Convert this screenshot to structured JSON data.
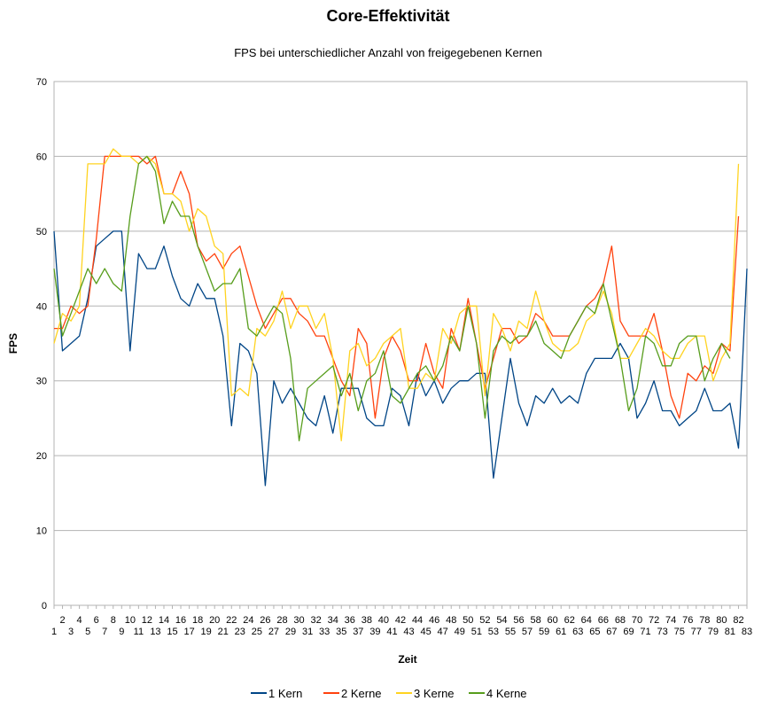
{
  "chart_data": {
    "type": "line",
    "title": "Core-Effektivität",
    "subtitle": "FPS bei unterschiedlicher Anzahl von freigegebenen Kernen",
    "xlabel": "Zeit",
    "ylabel": "FPS",
    "ylim": [
      0,
      70
    ],
    "yticks": [
      0,
      10,
      20,
      30,
      40,
      50,
      60,
      70
    ],
    "grid": "horizontal",
    "legend_position": "bottom",
    "x": [
      1,
      2,
      3,
      4,
      5,
      6,
      7,
      8,
      9,
      10,
      11,
      12,
      13,
      14,
      15,
      16,
      17,
      18,
      19,
      20,
      21,
      22,
      23,
      24,
      25,
      26,
      27,
      28,
      29,
      30,
      31,
      32,
      33,
      34,
      35,
      36,
      37,
      38,
      39,
      40,
      41,
      42,
      43,
      44,
      45,
      46,
      47,
      48,
      49,
      50,
      51,
      52,
      53,
      54,
      55,
      56,
      57,
      58,
      59,
      60,
      61,
      62,
      63,
      64,
      65,
      66,
      67,
      68,
      69,
      70,
      71,
      72,
      73,
      74,
      75,
      76,
      77,
      78,
      79,
      80,
      81,
      82,
      83
    ],
    "series": [
      {
        "name": "1 Kern",
        "color": "#004586",
        "values": [
          50,
          34,
          35,
          36,
          41,
          48,
          49,
          50,
          50,
          34,
          47,
          45,
          45,
          48,
          44,
          41,
          40,
          43,
          41,
          41,
          36,
          24,
          35,
          34,
          31,
          16,
          30,
          27,
          29,
          27,
          25,
          24,
          28,
          23,
          29,
          29,
          29,
          25,
          24,
          24,
          29,
          28,
          24,
          31,
          28,
          30,
          27,
          29,
          30,
          30,
          31,
          31,
          17,
          25,
          33,
          27,
          24,
          28,
          27,
          29,
          27,
          28,
          27,
          31,
          33,
          33,
          33,
          35,
          33,
          25,
          27,
          30,
          26,
          26,
          24,
          25,
          26,
          29,
          26,
          26,
          27,
          21,
          45
        ]
      },
      {
        "name": "2 Kerne",
        "color": "#ff420e",
        "values": [
          37,
          37,
          40,
          39,
          40,
          49,
          60,
          60,
          60,
          60,
          60,
          59,
          60,
          55,
          55,
          58,
          55,
          48,
          46,
          47,
          45,
          47,
          48,
          44,
          40,
          37,
          39,
          41,
          41,
          39,
          38,
          36,
          36,
          33,
          30,
          28,
          37,
          35,
          25,
          33,
          36,
          34,
          30,
          30,
          35,
          31,
          29,
          37,
          34,
          41,
          35,
          29,
          33,
          37,
          37,
          35,
          36,
          39,
          38,
          36,
          36,
          36,
          38,
          40,
          41,
          43,
          48,
          38,
          36,
          36,
          36,
          39,
          34,
          28,
          25,
          31,
          30,
          32,
          31,
          35,
          34,
          52,
          null
        ]
      },
      {
        "name": "3 Kerne",
        "color": "#ffd320",
        "values": [
          35,
          39,
          38,
          40,
          59,
          59,
          59,
          61,
          60,
          60,
          59,
          60,
          59,
          55,
          55,
          54,
          50,
          53,
          52,
          48,
          47,
          28,
          29,
          28,
          37,
          36,
          38,
          42,
          37,
          40,
          40,
          37,
          39,
          33,
          22,
          34,
          35,
          32,
          33,
          35,
          36,
          37,
          29,
          29,
          31,
          30,
          37,
          35,
          39,
          40,
          40,
          28,
          39,
          37,
          34,
          38,
          37,
          42,
          38,
          35,
          34,
          34,
          35,
          38,
          39,
          42,
          39,
          33,
          33,
          35,
          37,
          36,
          34,
          33,
          33,
          35,
          36,
          36,
          30,
          33,
          35,
          59,
          null
        ]
      },
      {
        "name": "4 Kerne",
        "color": "#579d1c",
        "values": [
          45,
          36,
          39,
          42,
          45,
          43,
          45,
          43,
          42,
          52,
          59,
          60,
          58,
          51,
          54,
          52,
          52,
          48,
          45,
          42,
          43,
          43,
          45,
          37,
          36,
          38,
          40,
          39,
          33,
          22,
          29,
          30,
          31,
          32,
          28,
          31,
          26,
          30,
          31,
          34,
          28,
          27,
          29,
          31,
          32,
          30,
          32,
          36,
          34,
          40,
          35,
          25,
          34,
          36,
          35,
          36,
          36,
          38,
          35,
          34,
          33,
          36,
          38,
          40,
          39,
          43,
          38,
          33,
          26,
          29,
          36,
          35,
          32,
          32,
          35,
          36,
          36,
          30,
          33,
          35,
          33,
          null,
          null
        ]
      }
    ]
  }
}
